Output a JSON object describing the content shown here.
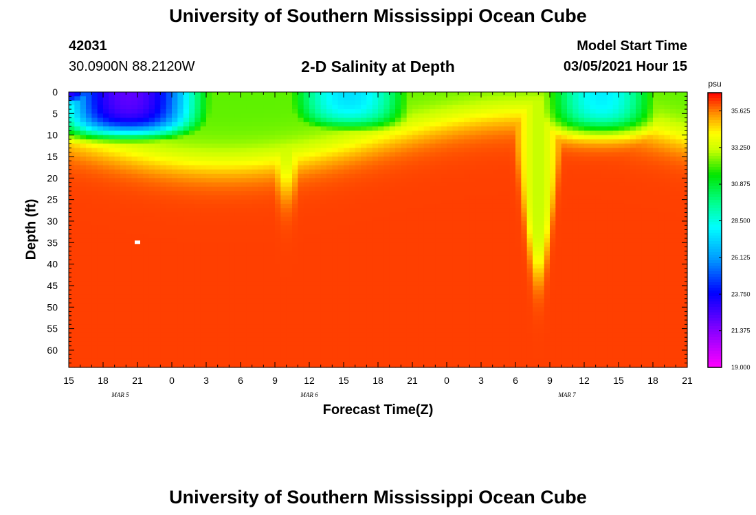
{
  "header": {
    "title": "University of Southern Mississippi Ocean Cube",
    "station_id": "42031",
    "coords": "30.0900N 88.2120W",
    "plot_title": "2-D Salinity at Depth",
    "model_label": "Model Start Time",
    "model_time": "03/05/2021 Hour 15"
  },
  "footer": {
    "title": "University of Southern Mississippi Ocean Cube"
  },
  "colors": {
    "background": "#ffffff",
    "marker": "#ffffff"
  },
  "chart_data": {
    "type": "heatmap",
    "title": "2-D Salinity at Depth",
    "xlabel": "Forecast Time(Z)",
    "ylabel": "Depth (ft)",
    "x_hours": [
      0,
      54
    ],
    "x_tick_labels": [
      "15",
      "18",
      "21",
      "0",
      "3",
      "6",
      "9",
      "12",
      "15",
      "18",
      "21",
      "0",
      "3",
      "6",
      "9",
      "12",
      "15",
      "18",
      "21"
    ],
    "date_labels": [
      {
        "label": "MAR 5",
        "hour": 4.5
      },
      {
        "label": "MAR 6",
        "hour": 21
      },
      {
        "label": "MAR 7",
        "hour": 43.5
      }
    ],
    "ylim": [
      0,
      64
    ],
    "y_ticks": [
      0,
      5,
      10,
      15,
      20,
      25,
      30,
      35,
      40,
      45,
      50,
      55,
      60
    ],
    "colorbar": {
      "unit": "psu",
      "min": 19.0,
      "max": 36.8,
      "tick_values": [
        35.625,
        33.25,
        30.875,
        28.5,
        26.125,
        23.75,
        21.375,
        19.0
      ],
      "tick_labels": [
        "35.625",
        "33.250",
        "30.875",
        "28.500",
        "26.125",
        "23.750",
        "21.375",
        "19.000"
      ]
    },
    "marker": {
      "hour": 6,
      "depth": 35
    },
    "salinity_field": {
      "deep_value": 36.2,
      "fresh_lens": [
        {
          "t0": 0,
          "t1": 10.5,
          "center": 4.5,
          "width": 1.8,
          "depth": 10,
          "value": 20.5
        },
        {
          "t0": 20,
          "t1": 29,
          "center": 24.5,
          "width": 1.6,
          "depth": 8.5,
          "value": 26.3
        },
        {
          "t0": 42.5,
          "t1": 50.5,
          "center": 46.5,
          "width": 1.6,
          "depth": 9,
          "value": 26.3
        }
      ],
      "plumes": [
        {
          "center": 19,
          "width": 2.0,
          "depth": 20,
          "value": 33.0
        },
        {
          "center": 41,
          "width": 1.8,
          "depth": 40,
          "value": 33.0
        }
      ]
    }
  }
}
